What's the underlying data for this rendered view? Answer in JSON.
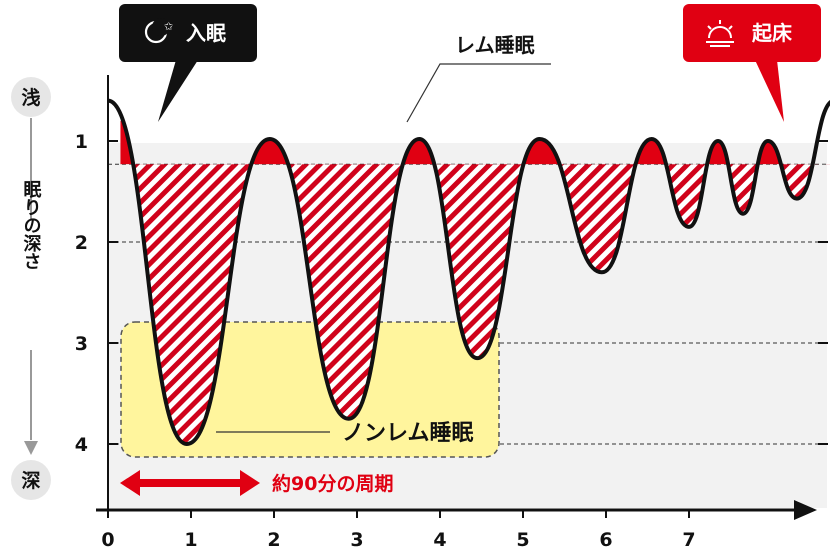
{
  "labels": {
    "sleep_onset": "入眠",
    "wake_up": "起床",
    "rem": "レム睡眠",
    "non_rem": "ノンレム睡眠",
    "cycle": "約90分の周期",
    "shallow": "浅",
    "deep": "深",
    "depth_axis": "眠りの深さ"
  },
  "icons": {
    "sleep_onset": "moon-star-icon",
    "wake_up": "sunrise-icon"
  },
  "colors": {
    "rem_fill": "#e00012",
    "hatch": "#d0021b",
    "onset_badge": "#111111",
    "wake_badge": "#e00012",
    "nonrem_box": "#fff59d",
    "cycle_arrow": "#e00012",
    "plot_bg": "#f2f2f2"
  },
  "chart_data": {
    "type": "line",
    "y_ticks": [
      "1",
      "2",
      "3",
      "4"
    ],
    "x_ticks": [
      "0",
      "1",
      "2",
      "3",
      "4",
      "5",
      "6",
      "7"
    ],
    "x_unit": "hours",
    "y_meaning": "sleep depth (1 = shallow, 4 = deep)",
    "rem_threshold": 1.23,
    "ylim": [
      0.3,
      4.6
    ],
    "grid": "dashed horizontal at 2, 3, 4",
    "extrema": [
      {
        "x": 0.0,
        "y": 0.6
      },
      {
        "x": 0.95,
        "y": 4.0
      },
      {
        "x": 1.95,
        "y": 0.98
      },
      {
        "x": 2.9,
        "y": 3.75
      },
      {
        "x": 3.75,
        "y": 0.98
      },
      {
        "x": 4.45,
        "y": 3.15
      },
      {
        "x": 5.2,
        "y": 0.98
      },
      {
        "x": 5.95,
        "y": 2.3
      },
      {
        "x": 6.55,
        "y": 0.98
      },
      {
        "x": 7.0,
        "y": 1.85
      },
      {
        "x": 7.35,
        "y": 1.0
      },
      {
        "x": 7.65,
        "y": 1.72
      },
      {
        "x": 7.95,
        "y": 1.0
      },
      {
        "x": 8.3,
        "y": 1.57
      },
      {
        "x": 8.75,
        "y": 0.6
      }
    ]
  }
}
